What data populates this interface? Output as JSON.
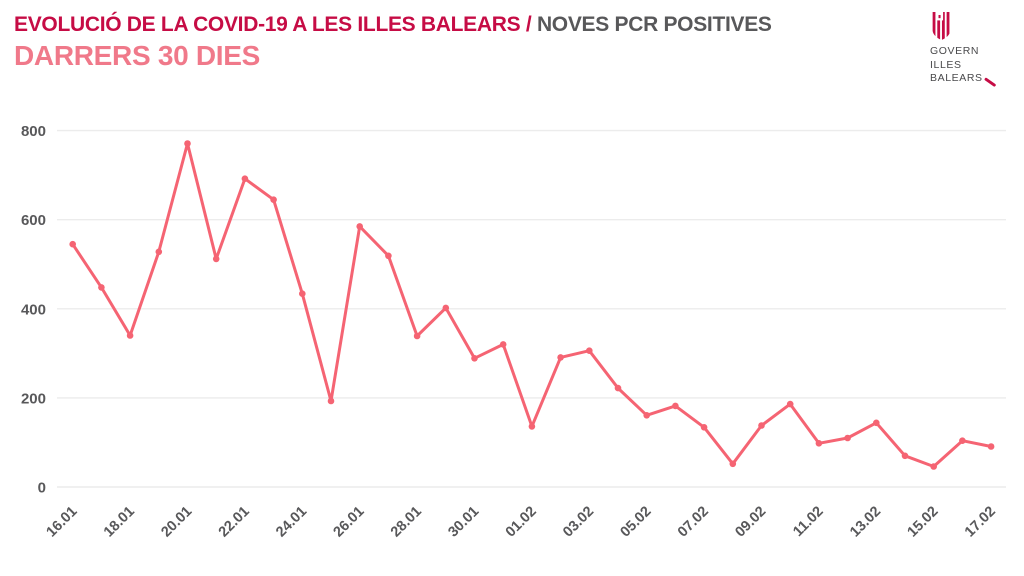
{
  "header": {
    "title_accent": "EVOLUCIÓ DE LA COVID-19 A LES ILLES BALEARS /",
    "title_rest": "NOVES PCR POSITIVES",
    "subtitle": "DARRERS 30 DIES"
  },
  "logo": {
    "line1": "GOVERN",
    "line2": "ILLES",
    "line3": "BALEARS"
  },
  "colors": {
    "accent_crimson": "#c60c45",
    "accent_salmon": "#f0798a",
    "line": "#f56473",
    "axis_text": "#58585a",
    "gridline": "#ececec"
  },
  "chart_data": {
    "type": "line",
    "title": "Noves PCR positives - darrers 30 dies",
    "x": [
      "16.01",
      "17.01",
      "18.01",
      "19.01",
      "20.01",
      "21.01",
      "22.01",
      "23.01",
      "24.01",
      "25.01",
      "26.01",
      "27.01",
      "28.01",
      "29.01",
      "30.01",
      "31.01",
      "01.02",
      "02.02",
      "03.02",
      "04.02",
      "05.02",
      "06.02",
      "07.02",
      "08.02",
      "09.02",
      "10.02",
      "11.02",
      "12.02",
      "13.02",
      "14.02",
      "15.02",
      "16.02",
      "17.02"
    ],
    "values": [
      545,
      448,
      340,
      528,
      771,
      512,
      692,
      645,
      434,
      193,
      585,
      519,
      339,
      402,
      289,
      320,
      136,
      291,
      306,
      222,
      161,
      182,
      134,
      52,
      138,
      186,
      98,
      110,
      144,
      70,
      46,
      104,
      91
    ],
    "x_tick_labels": [
      "16.01",
      "18.01",
      "20.01",
      "22.01",
      "24.01",
      "26.01",
      "28.01",
      "30.01",
      "01.02",
      "03.02",
      "05.02",
      "07.02",
      "09.02",
      "11.02",
      "13.02",
      "15.02",
      "17.02"
    ],
    "tick_every": 2,
    "yticks": [
      0,
      200,
      400,
      600,
      800
    ],
    "ylim": [
      0,
      800
    ],
    "grid": true,
    "legend": "none",
    "marker": "circle"
  }
}
